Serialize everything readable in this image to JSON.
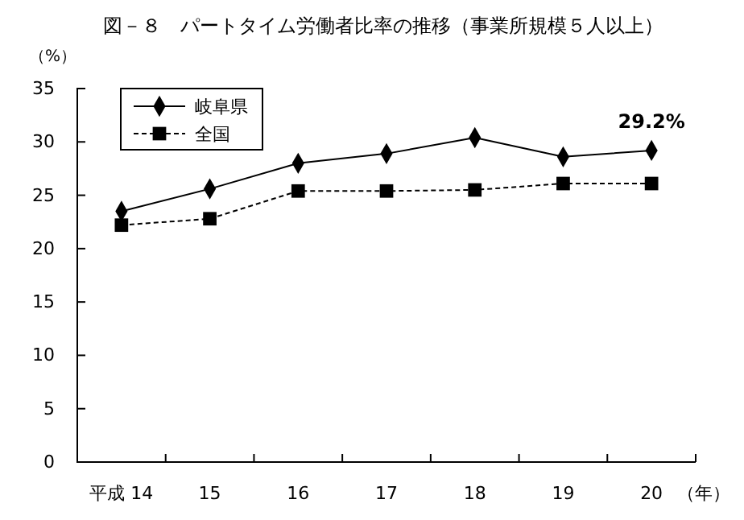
{
  "chart_data": {
    "type": "line",
    "title": "図－８　パートタイム労働者比率の推移（事業所規模５人以上）",
    "ylabel": "（%）",
    "xlabel": "（年）",
    "categories": [
      "平成 14",
      "15",
      "16",
      "17",
      "18",
      "19",
      "20"
    ],
    "series": [
      {
        "name": "岐阜県",
        "color": "#000000",
        "marker": "diamond",
        "line_style": "solid",
        "values": [
          23.5,
          25.6,
          28.0,
          28.9,
          30.4,
          28.6,
          29.2
        ]
      },
      {
        "name": "全国",
        "color": "#000000",
        "marker": "square",
        "line_style": "dashed",
        "values": [
          22.2,
          22.8,
          25.4,
          25.4,
          25.5,
          26.1,
          26.1
        ]
      }
    ],
    "ylim": [
      0,
      35
    ],
    "yticks": [
      0,
      5,
      10,
      15,
      20,
      25,
      30,
      35
    ],
    "grid": false,
    "legend": "top left",
    "annotations": [
      {
        "text": "29.2%",
        "x": "20",
        "y": 29.2
      }
    ]
  }
}
